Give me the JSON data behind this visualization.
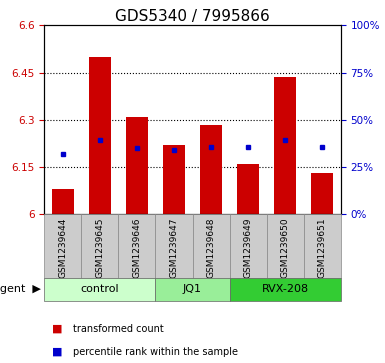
{
  "title": "GDS5340 / 7995866",
  "categories": [
    "GSM1239644",
    "GSM1239645",
    "GSM1239646",
    "GSM1239647",
    "GSM1239648",
    "GSM1239649",
    "GSM1239650",
    "GSM1239651"
  ],
  "bar_values": [
    6.08,
    6.5,
    6.31,
    6.22,
    6.285,
    6.16,
    6.435,
    6.13
  ],
  "blue_dot_values": [
    6.19,
    6.235,
    6.21,
    6.205,
    6.215,
    6.215,
    6.235,
    6.215
  ],
  "bar_color": "#cc0000",
  "dot_color": "#0000cc",
  "ylim_left": [
    6.0,
    6.6
  ],
  "ylim_right": [
    0,
    100
  ],
  "yticks_left": [
    6.0,
    6.15,
    6.3,
    6.45,
    6.6
  ],
  "yticks_right": [
    0,
    25,
    50,
    75,
    100
  ],
  "ytick_labels_left": [
    "6",
    "6.15",
    "6.3",
    "6.45",
    "6.6"
  ],
  "ytick_labels_right": [
    "0%",
    "25%",
    "50%",
    "75%",
    "100%"
  ],
  "groups": [
    {
      "label": "control",
      "start": 0,
      "end": 3,
      "color": "#ccffcc"
    },
    {
      "label": "JQ1",
      "start": 3,
      "end": 5,
      "color": "#99ee99"
    },
    {
      "label": "RVX-208",
      "start": 5,
      "end": 8,
      "color": "#33cc33"
    }
  ],
  "legend_items": [
    {
      "color": "#cc0000",
      "label": "transformed count"
    },
    {
      "color": "#0000cc",
      "label": "percentile rank within the sample"
    }
  ],
  "bar_width": 0.6,
  "ybase": 6.0,
  "sample_box_color": "#cccccc",
  "plot_bg": "#ffffff",
  "title_fontsize": 11,
  "axis_tick_fontsize": 7.5,
  "cat_fontsize": 6.5,
  "group_fontsize": 8,
  "legend_fontsize": 7,
  "agent_fontsize": 8,
  "grid_lines": [
    6.15,
    6.3,
    6.45
  ]
}
